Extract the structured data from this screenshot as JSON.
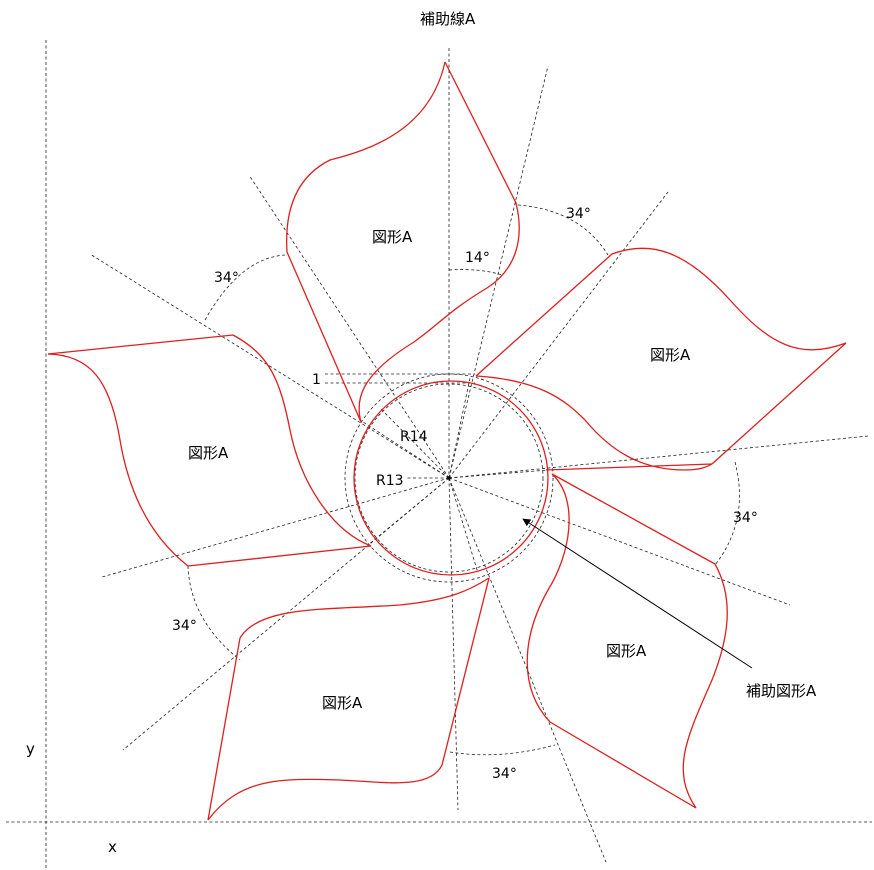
{
  "title": "補助線A",
  "axis": {
    "x_label": "x",
    "y_label": "y"
  },
  "shape_label": "図形A",
  "helper_shape_label": "補助図形A",
  "radius_outer": "R14",
  "radius_inner": "R13",
  "gap_label": "1",
  "tilt_angle": "14°",
  "spacing_angle": "34°",
  "colors": {
    "shape_stroke": "#dd1f1f",
    "guide_stroke": "#222222"
  }
}
